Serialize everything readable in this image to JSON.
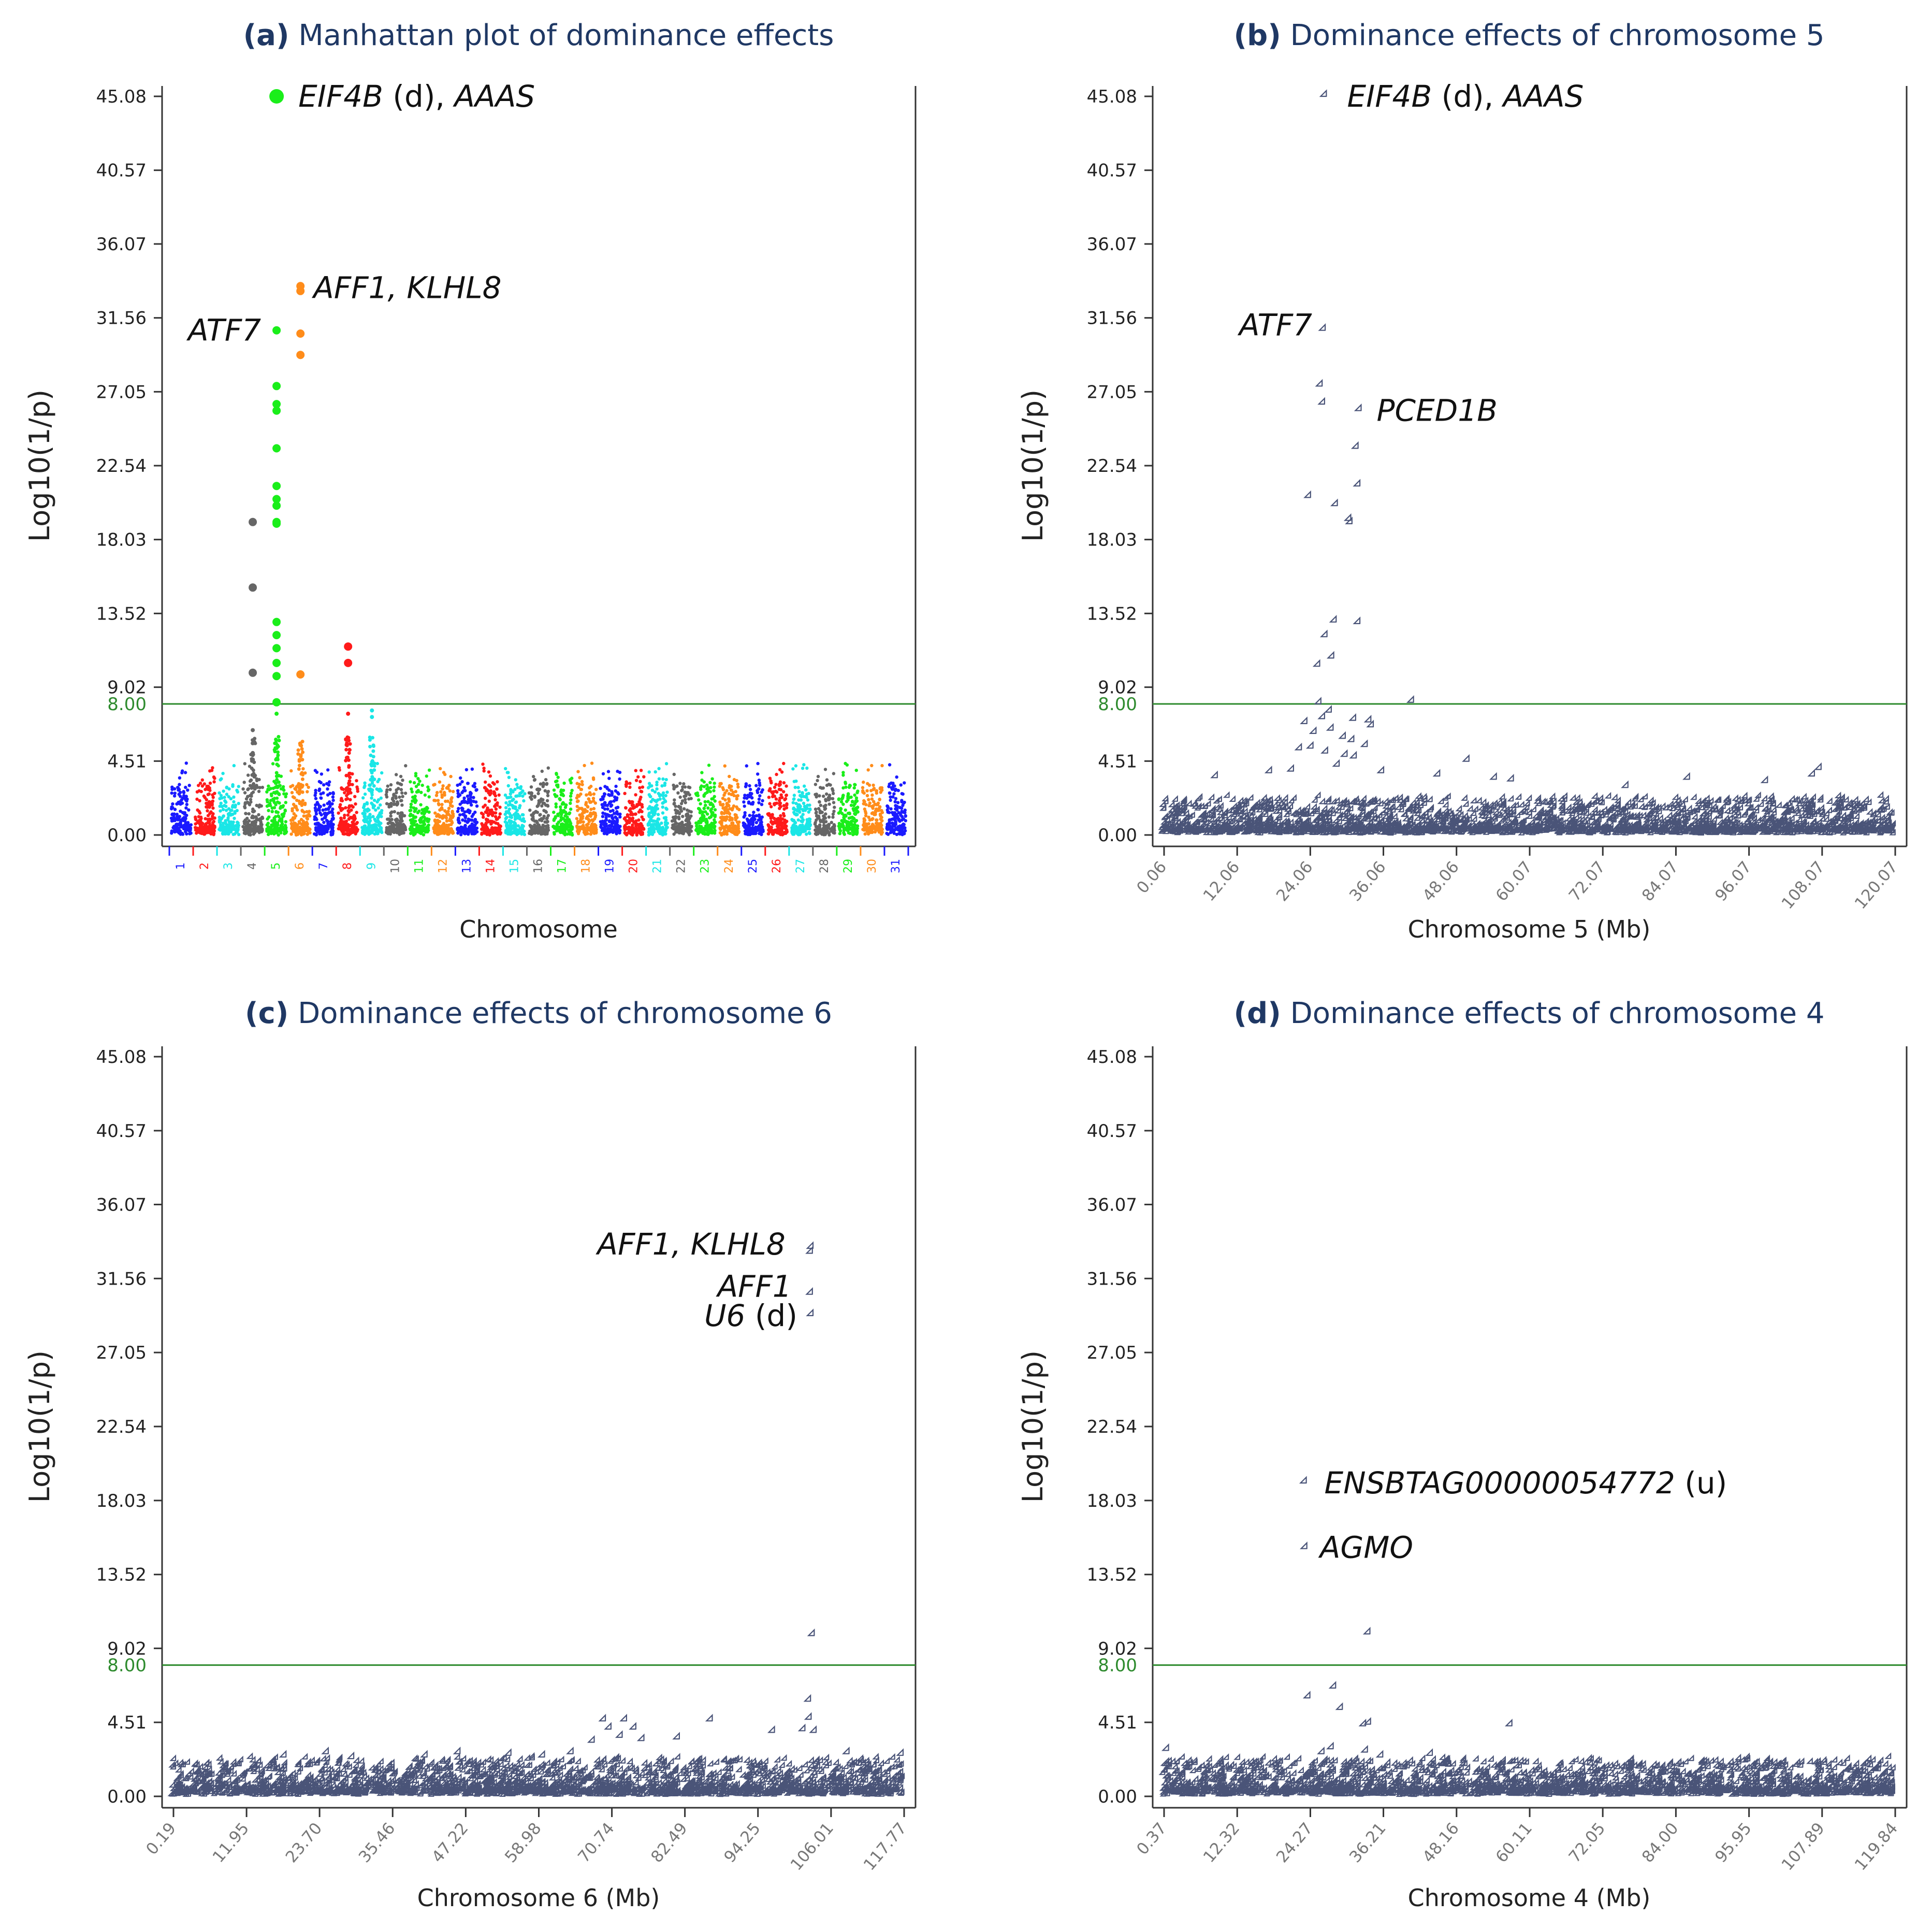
{
  "chart_data": [
    {
      "id": "a",
      "type": "scatter",
      "title_label": "(a)",
      "title": "Manhattan plot of dominance effects",
      "xlabel": "Chromosome",
      "ylabel": "Log10(1/p)",
      "yticks": [
        "0.00",
        "4.51",
        "9.02",
        "13.52",
        "18.03",
        "22.54",
        "27.05",
        "31.56",
        "36.07",
        "40.57",
        "45.08"
      ],
      "ylim": [
        0,
        45.08
      ],
      "threshold": 8.0,
      "threshold_label": "8.00",
      "categories": [
        "1",
        "2",
        "3",
        "4",
        "5",
        "6",
        "7",
        "8",
        "9",
        "10",
        "11",
        "12",
        "13",
        "14",
        "15",
        "16",
        "17",
        "18",
        "19",
        "20",
        "21",
        "22",
        "23",
        "24",
        "25",
        "26",
        "27",
        "28",
        "29",
        "30",
        "31"
      ],
      "chromosome_colors": [
        "#1a1aff",
        "#ff1a1a",
        "#1ae6e6",
        "#666666",
        "#1aee1a",
        "#ff8c1a"
      ],
      "peaks": [
        {
          "chromosome": "4",
          "values": [
            19.1,
            15.1,
            9.9,
            6.4,
            5.6,
            5.0
          ]
        },
        {
          "chromosome": "5",
          "values": [
            45.08,
            30.8,
            27.4,
            26.3,
            25.9,
            23.6,
            21.3,
            20.5,
            20.1,
            19.1,
            19.0,
            13.0,
            12.2,
            11.4,
            10.5,
            9.7,
            8.1,
            7.4
          ]
        },
        {
          "chromosome": "6",
          "values": [
            33.5,
            33.2,
            30.6,
            29.3,
            9.8,
            5.5
          ]
        },
        {
          "chromosome": "8",
          "values": [
            11.5,
            10.5,
            7.4
          ]
        },
        {
          "chromosome": "9",
          "values": [
            7.6,
            7.2
          ]
        }
      ],
      "annotations": [
        {
          "text": "EIF4B",
          "suffix": " (d), ",
          "text2": "AAAS",
          "chromosome": "5",
          "y": 45.08
        },
        {
          "text": "AFF1, KLHL8",
          "chromosome": "6",
          "y": 33.4
        },
        {
          "text": "ATF7",
          "chromosome": "5",
          "y": 30.8
        }
      ]
    },
    {
      "id": "b",
      "type": "scatter",
      "title_label": "(b)",
      "title": "Dominance effects of chromosome 5",
      "xlabel": "Chromosome 5 (Mb)",
      "ylabel": "Log10(1/p)",
      "yticks": [
        "0.00",
        "4.51",
        "9.02",
        "13.52",
        "18.03",
        "22.54",
        "27.05",
        "31.56",
        "36.07",
        "40.57",
        "45.08"
      ],
      "xticks": [
        "0.06",
        "12.06",
        "24.06",
        "36.06",
        "48.06",
        "60.07",
        "72.07",
        "84.07",
        "96.07",
        "108.07",
        "120.07"
      ],
      "xlim": [
        0.06,
        120.07
      ],
      "ylim": [
        0,
        45.08
      ],
      "threshold": 8.0,
      "threshold_label": "8.00",
      "points": [
        [
          26.7,
          45.08
        ],
        [
          26.5,
          30.8
        ],
        [
          26.0,
          27.4
        ],
        [
          26.4,
          26.3
        ],
        [
          32.4,
          25.9
        ],
        [
          31.9,
          23.6
        ],
        [
          32.2,
          21.3
        ],
        [
          24.1,
          20.6
        ],
        [
          28.5,
          20.1
        ],
        [
          30.7,
          19.2
        ],
        [
          30.9,
          19.0
        ],
        [
          28.3,
          13.0
        ],
        [
          32.2,
          12.9
        ],
        [
          26.8,
          12.1
        ],
        [
          27.9,
          10.8
        ],
        [
          25.6,
          10.3
        ],
        [
          41.0,
          8.1
        ],
        [
          25.8,
          8.0
        ],
        [
          27.5,
          7.5
        ],
        [
          26.4,
          7.1
        ],
        [
          31.5,
          7.0
        ],
        [
          34.0,
          6.9
        ],
        [
          23.5,
          6.8
        ],
        [
          27.8,
          6.4
        ],
        [
          34.4,
          6.6
        ],
        [
          25.0,
          6.2
        ],
        [
          29.8,
          5.9
        ],
        [
          31.2,
          5.7
        ],
        [
          33.4,
          5.4
        ],
        [
          24.5,
          5.3
        ],
        [
          22.6,
          5.2
        ],
        [
          26.9,
          5.0
        ],
        [
          30.1,
          4.8
        ],
        [
          31.6,
          4.7
        ],
        [
          50.1,
          4.5
        ],
        [
          28.8,
          4.2
        ],
        [
          21.3,
          3.9
        ],
        [
          36.1,
          3.8
        ],
        [
          45.3,
          3.6
        ],
        [
          17.7,
          3.8
        ],
        [
          54.6,
          3.4
        ],
        [
          57.4,
          3.3
        ],
        [
          107.9,
          4.0
        ],
        [
          106.8,
          3.6
        ],
        [
          86.3,
          3.4
        ],
        [
          76.2,
          2.9
        ],
        [
          99.1,
          3.2
        ],
        [
          8.8,
          3.5
        ]
      ],
      "annotations": [
        {
          "text": "EIF4B",
          "suffix": " (d), ",
          "text2": "AAAS",
          "x": 26.7,
          "y": 45.08
        },
        {
          "text": "ATF7",
          "x": 26.5,
          "y": 30.8
        },
        {
          "text": "PCED1B",
          "x": 32.4,
          "y": 25.9
        }
      ]
    },
    {
      "id": "c",
      "type": "scatter",
      "title_label": "(c)",
      "title": "Dominance effects of chromosome 6",
      "xlabel": "Chromosome 6 (Mb)",
      "ylabel": "Log10(1/p)",
      "yticks": [
        "0.00",
        "4.51",
        "9.02",
        "13.52",
        "18.03",
        "22.54",
        "27.05",
        "31.56",
        "36.07",
        "40.57",
        "45.08"
      ],
      "xticks": [
        "0.19",
        "11.95",
        "23.70",
        "35.46",
        "47.22",
        "58.98",
        "70.74",
        "82.49",
        "94.25",
        "106.01",
        "117.77"
      ],
      "xlim": [
        0.19,
        117.77
      ],
      "ylim": [
        0,
        45.08
      ],
      "threshold": 8.0,
      "threshold_label": "8.00",
      "points": [
        [
          103.1,
          33.4
        ],
        [
          103.0,
          33.1
        ],
        [
          103.0,
          30.6
        ],
        [
          103.1,
          29.3
        ],
        [
          103.3,
          9.8
        ],
        [
          102.7,
          5.8
        ],
        [
          102.8,
          4.7
        ],
        [
          101.8,
          4.0
        ],
        [
          103.6,
          3.9
        ],
        [
          69.7,
          4.6
        ],
        [
          73.1,
          4.6
        ],
        [
          70.6,
          4.1
        ],
        [
          74.6,
          4.1
        ],
        [
          86.9,
          4.6
        ],
        [
          96.9,
          3.9
        ],
        [
          72.4,
          3.6
        ],
        [
          81.6,
          3.5
        ],
        [
          67.9,
          3.3
        ],
        [
          75.9,
          3.4
        ],
        [
          54.5,
          2.5
        ],
        [
          18.3,
          2.4
        ],
        [
          25.1,
          2.6
        ],
        [
          29.2,
          2.3
        ],
        [
          41.0,
          2.4
        ],
        [
          46.3,
          2.6
        ],
        [
          59.9,
          2.4
        ],
        [
          64.5,
          2.6
        ],
        [
          108.9,
          2.6
        ],
        [
          117.6,
          2.5
        ]
      ],
      "annotations": [
        {
          "text": "AFF1, KLHL8",
          "x": 103.0,
          "y": 33.4
        },
        {
          "text": "AFF1",
          "x": 103.0,
          "y": 30.6
        },
        {
          "text": "U6",
          "suffix": " (d)",
          "x": 103.1,
          "y": 29.3
        }
      ]
    },
    {
      "id": "d",
      "type": "scatter",
      "title_label": "(d)",
      "title": "Dominance effects of chromosome 4",
      "xlabel": "Chromosome 4 (Mb)",
      "ylabel": "Log10(1/p)",
      "yticks": [
        "0.00",
        "4.51",
        "9.02",
        "13.52",
        "18.03",
        "22.54",
        "27.05",
        "31.56",
        "36.07",
        "40.57",
        "45.08"
      ],
      "xticks": [
        "0.37",
        "12.32",
        "24.27",
        "36.21",
        "48.16",
        "60.11",
        "72.05",
        "84.00",
        "95.95",
        "107.89",
        "119.84"
      ],
      "xlim": [
        0.37,
        119.84
      ],
      "ylim": [
        0,
        45.08
      ],
      "threshold": 8.0,
      "threshold_label": "8.00",
      "points": [
        [
          23.6,
          19.1
        ],
        [
          23.7,
          15.1
        ],
        [
          34.0,
          9.9
        ],
        [
          28.4,
          6.6
        ],
        [
          24.2,
          6.0
        ],
        [
          29.5,
          5.3
        ],
        [
          33.3,
          4.3
        ],
        [
          34.1,
          4.4
        ],
        [
          57.2,
          4.3
        ],
        [
          1.1,
          2.8
        ],
        [
          28.0,
          2.9
        ],
        [
          26.5,
          2.6
        ],
        [
          33.6,
          2.7
        ],
        [
          36.1,
          2.4
        ],
        [
          44.2,
          2.5
        ]
      ],
      "annotations": [
        {
          "text": "ENSBTAG00000054772",
          "suffix": " (u)",
          "x": 23.6,
          "y": 19.1
        },
        {
          "text": "AGMO",
          "x": 23.7,
          "y": 15.1
        }
      ]
    }
  ]
}
